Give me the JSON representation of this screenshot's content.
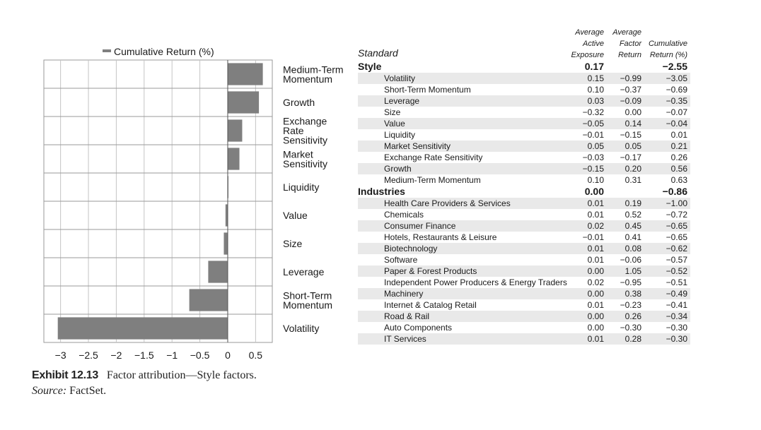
{
  "chart_data": {
    "type": "bar",
    "orientation": "horizontal",
    "legend": {
      "label": "Cumulative Return (%)",
      "placement": "top"
    },
    "categories": [
      "Medium-Term Momentum",
      "Growth",
      "Exchange Rate Sensitivity",
      "Market Sensitivity",
      "Liquidity",
      "Value",
      "Size",
      "Leverage",
      "Short-Term Momentum",
      "Volatility"
    ],
    "category_lines": [
      [
        "Medium-Term",
        "Momentum"
      ],
      [
        "Growth"
      ],
      [
        "Exchange",
        "Rate",
        "Sensitivity"
      ],
      [
        "Market",
        "Sensitivity"
      ],
      [
        "Liquidity"
      ],
      [
        "Value"
      ],
      [
        "Size"
      ],
      [
        "Leverage"
      ],
      [
        "Short-Term",
        "Momentum"
      ],
      [
        "Volatility"
      ]
    ],
    "values": [
      0.63,
      0.56,
      0.26,
      0.21,
      0.01,
      -0.04,
      -0.07,
      -0.35,
      -0.69,
      -3.05
    ],
    "xlim": [
      -3.3,
      0.8
    ],
    "xticks": [
      -3,
      -2.5,
      -2,
      -1.5,
      -1,
      -0.5,
      0,
      0.5
    ],
    "xtick_labels": [
      "−3",
      "−2.5",
      "−2",
      "−1.5",
      "−1",
      "−0.5",
      "0",
      "0.5"
    ],
    "grid": true,
    "bar_color": "#7f7f7f"
  },
  "caption": {
    "exhibit": "Exhibit 12.13",
    "title": "Factor attribution—Style factors.",
    "source_label": "Source:",
    "source": "FactSet."
  },
  "table": {
    "header": {
      "standard": "Standard",
      "col1": [
        "Average",
        "Active",
        "Exposure"
      ],
      "col2": [
        "Average",
        "Factor",
        "Return"
      ],
      "col3": [
        "Cumulative",
        "Return (%)"
      ]
    },
    "sections": [
      {
        "name": "Style",
        "exposure": "0.17",
        "cumulative": "−2.55",
        "rows": [
          {
            "label": "Volatility",
            "exposure": "0.15",
            "factor_return": "−0.99",
            "cumulative": "−3.05"
          },
          {
            "label": "Short-Term Momentum",
            "exposure": "0.10",
            "factor_return": "−0.37",
            "cumulative": "−0.69"
          },
          {
            "label": "Leverage",
            "exposure": "0.03",
            "factor_return": "−0.09",
            "cumulative": "−0.35"
          },
          {
            "label": "Size",
            "exposure": "−0.32",
            "factor_return": "0.00",
            "cumulative": "−0.07"
          },
          {
            "label": "Value",
            "exposure": "−0.05",
            "factor_return": "0.14",
            "cumulative": "−0.04"
          },
          {
            "label": "Liquidity",
            "exposure": "−0.01",
            "factor_return": "−0.15",
            "cumulative": "0.01"
          },
          {
            "label": "Market Sensitivity",
            "exposure": "0.05",
            "factor_return": "0.05",
            "cumulative": "0.21"
          },
          {
            "label": "Exchange Rate Sensitivity",
            "exposure": "−0.03",
            "factor_return": "−0.17",
            "cumulative": "0.26"
          },
          {
            "label": "Growth",
            "exposure": "−0.15",
            "factor_return": "0.20",
            "cumulative": "0.56"
          },
          {
            "label": "Medium-Term Momentum",
            "exposure": "0.10",
            "factor_return": "0.31",
            "cumulative": "0.63"
          }
        ]
      },
      {
        "name": "Industries",
        "exposure": "0.00",
        "cumulative": "−0.86",
        "rows": [
          {
            "label": "Health Care Providers & Services",
            "exposure": "0.01",
            "factor_return": "0.19",
            "cumulative": "−1.00"
          },
          {
            "label": "Chemicals",
            "exposure": "0.01",
            "factor_return": "0.52",
            "cumulative": "−0.72"
          },
          {
            "label": "Consumer Finance",
            "exposure": "0.02",
            "factor_return": "0.45",
            "cumulative": "−0.65"
          },
          {
            "label": "Hotels, Restaurants & Leisure",
            "exposure": "−0.01",
            "factor_return": "0.41",
            "cumulative": "−0.65"
          },
          {
            "label": "Biotechnology",
            "exposure": "0.01",
            "factor_return": "0.08",
            "cumulative": "−0.62"
          },
          {
            "label": "Software",
            "exposure": "0.01",
            "factor_return": "−0.06",
            "cumulative": "−0.57"
          },
          {
            "label": "Paper & Forest Products",
            "exposure": "0.00",
            "factor_return": "1.05",
            "cumulative": "−0.52"
          },
          {
            "label": "Independent Power Producers & Energy Traders",
            "exposure": "0.02",
            "factor_return": "−0.95",
            "cumulative": "−0.51"
          },
          {
            "label": "Machinery",
            "exposure": "0.00",
            "factor_return": "0.38",
            "cumulative": "−0.49"
          },
          {
            "label": "Internet & Catalog Retail",
            "exposure": "0.01",
            "factor_return": "−0.23",
            "cumulative": "−0.41"
          },
          {
            "label": "Road & Rail",
            "exposure": "0.00",
            "factor_return": "0.26",
            "cumulative": "−0.34"
          },
          {
            "label": "Auto Components",
            "exposure": "0.00",
            "factor_return": "−0.30",
            "cumulative": "−0.30"
          },
          {
            "label": "IT Services",
            "exposure": "0.01",
            "factor_return": "0.28",
            "cumulative": "−0.30"
          }
        ]
      }
    ]
  }
}
